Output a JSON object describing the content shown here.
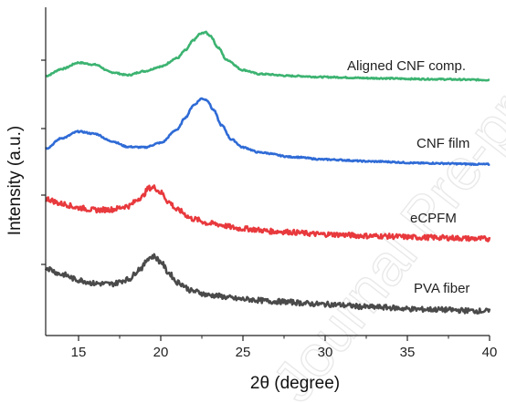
{
  "chart_data": {
    "type": "line",
    "title": "",
    "xlabel": "2θ (degree)",
    "ylabel": "Intensity (a.u.)",
    "xlim": [
      13,
      40
    ],
    "xticks": [
      15,
      20,
      25,
      30,
      35,
      40
    ],
    "ylim": [
      0,
      100
    ],
    "y_ticks_unlabeled": true,
    "watermark": "Journal Pre-proof",
    "series": [
      {
        "name": "Aligned CNF comp.",
        "color": "#3cb371",
        "noise": 0.25,
        "x": [
          13,
          14,
          15,
          16,
          17,
          18,
          19,
          20,
          21,
          21.5,
          22,
          22.4,
          22.7,
          23,
          23.5,
          24,
          25,
          26,
          28,
          30,
          33,
          36,
          40
        ],
        "y": [
          85.5,
          88.0,
          90.2,
          89.5,
          86.8,
          85.8,
          87.2,
          88.8,
          91.8,
          94.6,
          98.2,
          100.4,
          101.0,
          99.8,
          95.5,
          91.2,
          87.6,
          86.2,
          85.5,
          85.1,
          84.7,
          84.4,
          84.1
        ]
      },
      {
        "name": "CNF film",
        "color": "#2f6bd6",
        "noise": 0.25,
        "x": [
          13,
          14,
          15,
          16,
          17,
          18,
          19,
          20,
          21,
          21.5,
          22,
          22.5,
          22.8,
          23.2,
          23.7,
          24.3,
          25,
          26,
          28,
          30,
          33,
          36,
          40
        ],
        "y": [
          59.8,
          63.5,
          65.8,
          65.0,
          62.4,
          60.4,
          60.2,
          61.8,
          66.5,
          70.8,
          75.2,
          77.5,
          77.0,
          73.5,
          68.0,
          63.0,
          60.2,
          58.4,
          56.8,
          55.9,
          55.2,
          54.6,
          54.2
        ]
      },
      {
        "name": "eCPFM",
        "color": "#e8393d",
        "noise": 0.9,
        "x": [
          13,
          14,
          15,
          16,
          17,
          18,
          18.8,
          19.3,
          19.6,
          20,
          20.5,
          21,
          22,
          23,
          25,
          27,
          30,
          33,
          36,
          40
        ],
        "y": [
          42.0,
          40.2,
          38.8,
          38.0,
          38.2,
          39.4,
          42.4,
          45.8,
          46.0,
          44.2,
          40.8,
          38.0,
          34.8,
          33.2,
          31.4,
          30.4,
          29.4,
          28.8,
          28.3,
          27.8
        ]
      },
      {
        "name": "PVA fiber",
        "color": "#4a4a4a",
        "noise": 0.9,
        "x": [
          13,
          14,
          15,
          16,
          17,
          18,
          18.8,
          19.3,
          19.6,
          20,
          20.5,
          21,
          22,
          23,
          25,
          27,
          30,
          33,
          36,
          40
        ],
        "y": [
          17.5,
          15.2,
          13.2,
          12.0,
          11.8,
          13.4,
          17.4,
          21.2,
          21.6,
          19.6,
          15.6,
          12.4,
          9.2,
          7.8,
          6.4,
          5.6,
          4.6,
          3.6,
          2.8,
          2.2
        ]
      }
    ]
  }
}
